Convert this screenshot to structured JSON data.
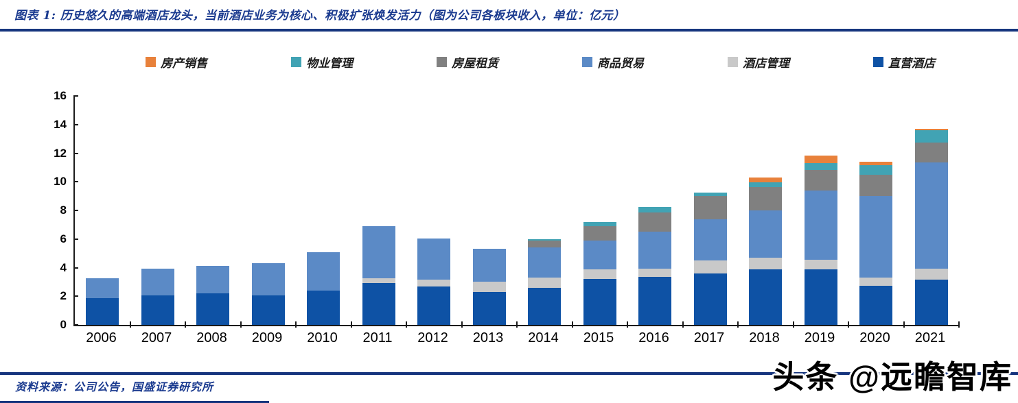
{
  "header": {
    "title": "图表 1: 历史悠久的高端酒店龙头，当前酒店业务为核心、积极扩张焕发活力（图为公司各板块收入，单位：亿元）"
  },
  "colors": {
    "accent_navy_text": "#1A3A8F",
    "accent_navy_rule": "#16357E",
    "axis_black": "#1a1a1a"
  },
  "legend_order": [
    "property-sales",
    "property-management",
    "housing-rental",
    "commodity-trade",
    "hotel-management",
    "direct-hotels"
  ],
  "chart_data": {
    "type": "bar",
    "stacked": true,
    "title": "公司各板块收入",
    "unit": "亿元",
    "xlabel": "",
    "ylabel": "",
    "ylim": [
      0,
      16
    ],
    "yticks": [
      0,
      2,
      4,
      6,
      8,
      10,
      12,
      14,
      16
    ],
    "grid": false,
    "legend_position": "top",
    "categories": [
      "2006",
      "2007",
      "2008",
      "2009",
      "2010",
      "2011",
      "2012",
      "2013",
      "2014",
      "2015",
      "2016",
      "2017",
      "2018",
      "2019",
      "2020",
      "2021"
    ],
    "stack_order": "series listed bottom to top",
    "series": [
      {
        "key": "direct-hotels",
        "name": "直营酒店",
        "color": "#0E52A5",
        "values": [
          1.85,
          2.05,
          2.2,
          2.05,
          2.4,
          2.9,
          2.7,
          2.3,
          2.6,
          3.2,
          3.35,
          3.6,
          3.9,
          3.9,
          2.75,
          3.15
        ]
      },
      {
        "key": "hotel-management",
        "name": "酒店管理",
        "color": "#C9C9C9",
        "values": [
          0,
          0,
          0,
          0,
          0,
          0.35,
          0.45,
          0.7,
          0.7,
          0.7,
          0.6,
          0.9,
          0.8,
          0.65,
          0.55,
          0.8
        ]
      },
      {
        "key": "commodity-trade",
        "name": "商品贸易",
        "color": "#5B8AC6",
        "values": [
          1.4,
          1.9,
          1.9,
          2.25,
          2.7,
          3.65,
          2.9,
          2.3,
          2.1,
          2.0,
          2.55,
          2.9,
          3.3,
          4.85,
          5.7,
          7.4
        ]
      },
      {
        "key": "housing-rental",
        "name": "房屋租赁",
        "color": "#808080",
        "values": [
          0,
          0,
          0,
          0,
          0,
          0,
          0,
          0,
          0.48,
          1.0,
          1.35,
          1.6,
          1.65,
          1.45,
          1.5,
          1.4
        ]
      },
      {
        "key": "property-management",
        "name": "物业管理",
        "color": "#41A3B4",
        "values": [
          0,
          0,
          0,
          0,
          0,
          0,
          0,
          0,
          0.12,
          0.27,
          0.4,
          0.25,
          0.3,
          0.45,
          0.65,
          0.85
        ]
      },
      {
        "key": "property-sales",
        "name": "房产销售",
        "color": "#E8813B",
        "values": [
          0,
          0,
          0,
          0,
          0,
          0,
          0,
          0,
          0,
          0,
          0,
          0,
          0.35,
          0.55,
          0.25,
          0.1
        ]
      }
    ],
    "totals": [
      3.25,
      3.95,
      4.1,
      4.3,
      5.1,
      6.9,
      6.05,
      5.3,
      6.0,
      7.17,
      8.25,
      9.25,
      10.3,
      11.85,
      11.4,
      13.7
    ]
  },
  "footer": {
    "source": "资料来源：公司公告，国盛证券研究所",
    "watermark": "头条 @远瞻智库"
  }
}
